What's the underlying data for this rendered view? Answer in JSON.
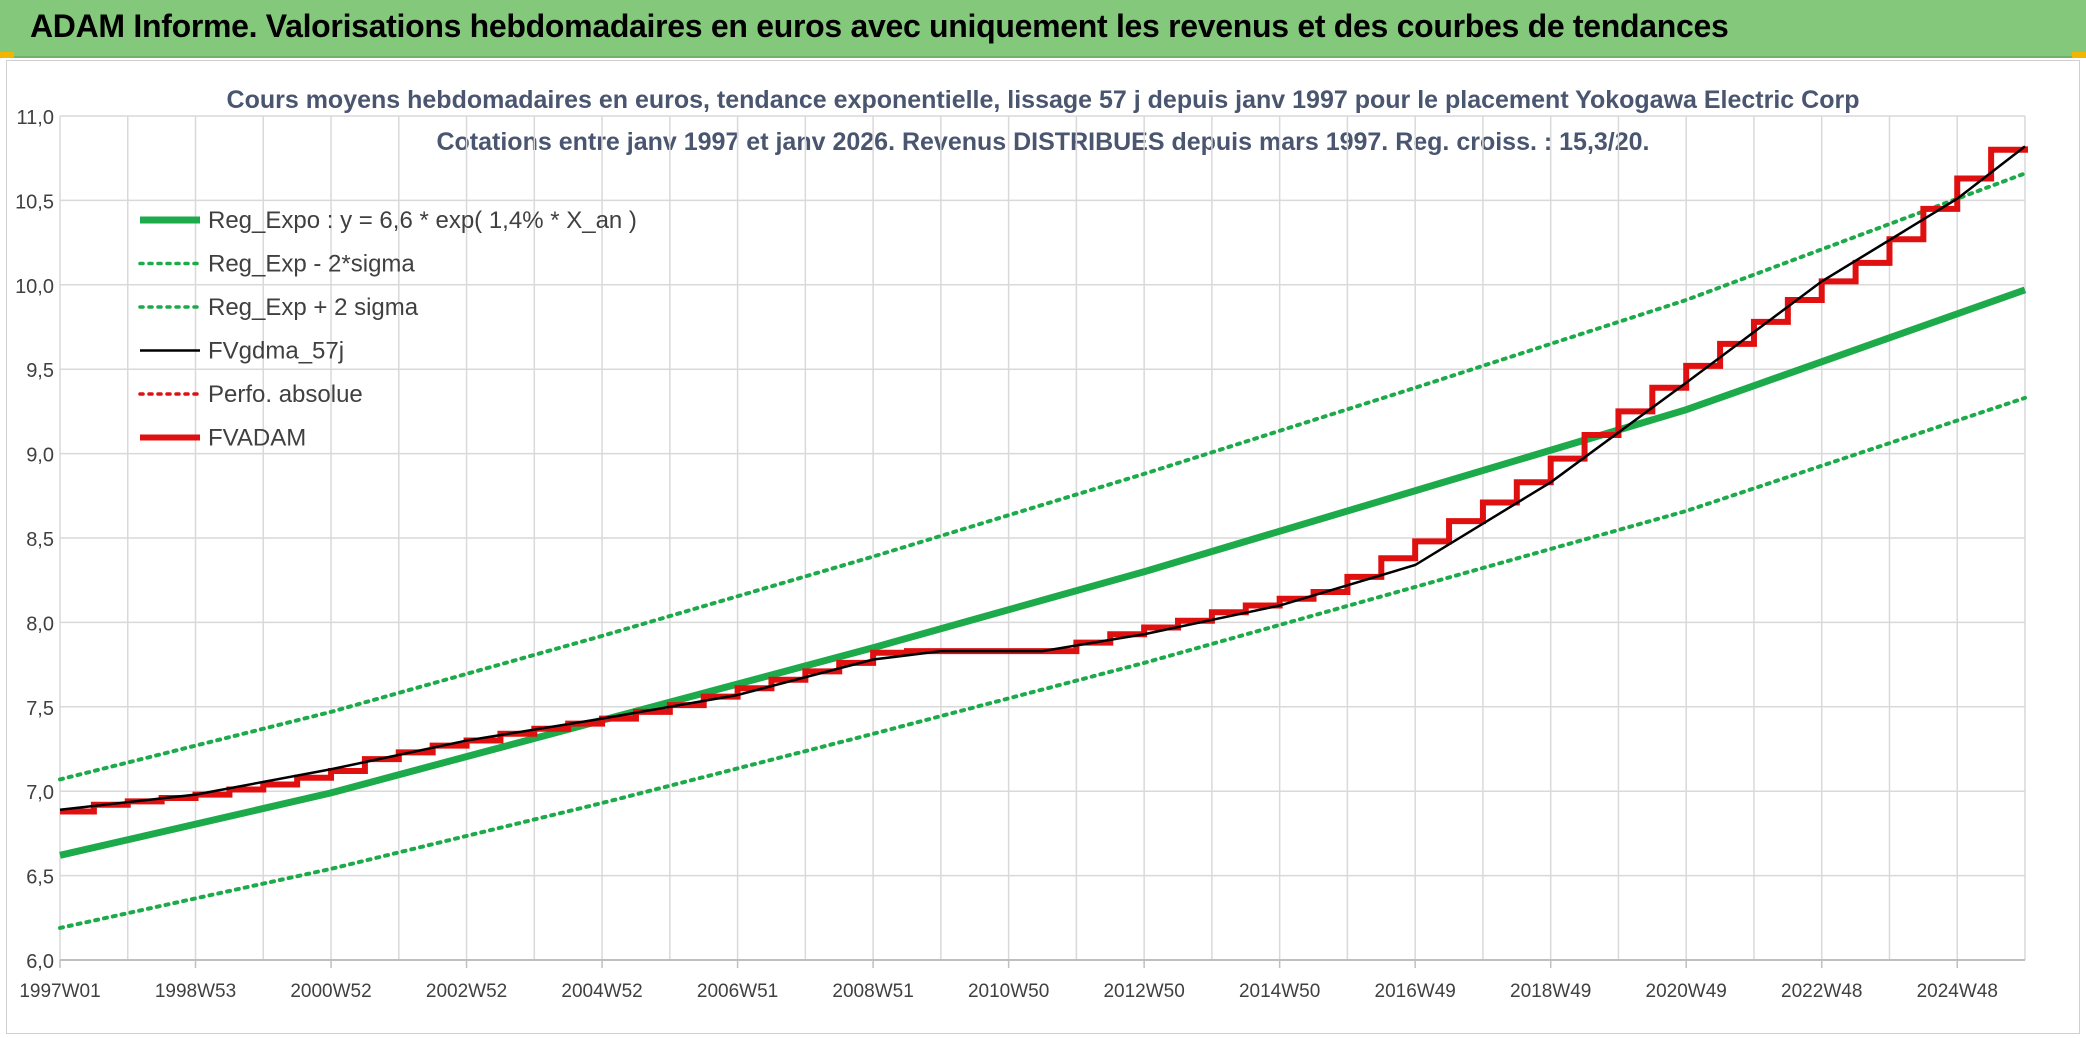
{
  "header": {
    "title": "ADAM Informe. Valorisations hebdomadaires en euros avec uniquement les revenus et des courbes de tendances"
  },
  "colors": {
    "header_bg": "#84c97b",
    "accent_corner": "#f2b600",
    "reg_expo": "#1daa4a",
    "fvadam": "#e01010",
    "fvgdma": "#000000",
    "title_text": "#4a5570",
    "grid": "#d9d9d9"
  },
  "chart_data": {
    "type": "line",
    "title": "Cours moyens hebdomadaires en euros, tendance exponentielle, lissage 57 j depuis janv 1997 pour le placement Yokogawa Electric Corp",
    "subtitle": "Cotations entre janv 1997 et janv 2026. Revenus DISTRIBUES depuis mars 1997. Reg. croiss. : 15,3/20.",
    "xlabel": "",
    "ylabel": "",
    "xlim": [
      1997.0,
      2026.0
    ],
    "ylim": [
      6.0,
      11.0
    ],
    "ytick_step": 0.5,
    "ytick_labels": [
      "6,0",
      "6,5",
      "7,0",
      "7,5",
      "8,0",
      "8,5",
      "9,0",
      "9,5",
      "10,0",
      "10,5",
      "11,0"
    ],
    "xtick_labels": [
      {
        "label": "1997W01",
        "x": 1997.0
      },
      {
        "label": "1998W53",
        "x": 1999.0
      },
      {
        "label": "2000W52",
        "x": 2001.0
      },
      {
        "label": "2002W52",
        "x": 2003.0
      },
      {
        "label": "2004W52",
        "x": 2005.0
      },
      {
        "label": "2006W51",
        "x": 2007.0
      },
      {
        "label": "2008W51",
        "x": 2009.0
      },
      {
        "label": "2010W50",
        "x": 2011.0
      },
      {
        "label": "2012W50",
        "x": 2013.0
      },
      {
        "label": "2014W50",
        "x": 2015.0
      },
      {
        "label": "2016W49",
        "x": 2017.0
      },
      {
        "label": "2018W49",
        "x": 2019.0
      },
      {
        "label": "2020W49",
        "x": 2021.0
      },
      {
        "label": "2022W48",
        "x": 2023.0
      },
      {
        "label": "2024W48",
        "x": 2025.0
      }
    ],
    "grid": true,
    "legend_position": "top-left",
    "series": [
      {
        "name": "Reg_Expo : y = 6,6 * exp( 1,4% *  X_an )",
        "style": "solid-thick",
        "color": "#1daa4a",
        "x": [
          1997.0,
          2001.0,
          2005.0,
          2009.0,
          2013.0,
          2017.0,
          2021.0,
          2026.0
        ],
        "values": [
          6.62,
          6.99,
          7.42,
          7.85,
          8.3,
          8.78,
          9.26,
          9.97
        ]
      },
      {
        "name": "Reg_Exp - 2*sigma",
        "style": "dotted",
        "color": "#1daa4a",
        "x": [
          1997.0,
          2001.0,
          2005.0,
          2009.0,
          2013.0,
          2017.0,
          2021.0,
          2026.0
        ],
        "values": [
          6.19,
          6.54,
          6.93,
          7.34,
          7.76,
          8.21,
          8.66,
          9.33
        ]
      },
      {
        "name": "Reg_Exp + 2 sigma",
        "style": "dotted",
        "color": "#1daa4a",
        "x": [
          1997.0,
          2001.0,
          2005.0,
          2009.0,
          2013.0,
          2017.0,
          2021.0,
          2026.0
        ],
        "values": [
          7.07,
          7.47,
          7.92,
          8.39,
          8.88,
          9.39,
          9.91,
          10.66
        ]
      },
      {
        "name": "FVgdma_57j",
        "style": "solid",
        "color": "#000000",
        "x": [
          1997.0,
          1999.0,
          2001.0,
          2003.0,
          2005.0,
          2007.0,
          2009.0,
          2010.0,
          2011.5,
          2013.0,
          2015.0,
          2017.0,
          2019.0,
          2021.0,
          2023.0,
          2025.0,
          2026.0
        ],
        "values": [
          6.89,
          6.98,
          7.13,
          7.3,
          7.43,
          7.57,
          7.78,
          7.83,
          7.83,
          7.93,
          8.1,
          8.34,
          8.83,
          9.42,
          10.02,
          10.51,
          10.82
        ]
      },
      {
        "name": "Perfo. absolue",
        "style": "dotted",
        "color": "#e01010",
        "x": [],
        "values": []
      },
      {
        "name": "FVADAM",
        "style": "step-thick",
        "color": "#e01010",
        "x": [
          1997.0,
          1997.5,
          1998.0,
          1998.5,
          1999.0,
          1999.5,
          2000.0,
          2000.5,
          2001.0,
          2001.5,
          2002.0,
          2002.5,
          2003.0,
          2003.5,
          2004.0,
          2004.5,
          2005.0,
          2005.5,
          2006.0,
          2006.5,
          2007.0,
          2007.5,
          2008.0,
          2008.5,
          2009.0,
          2009.5,
          2010.0,
          2010.5,
          2011.0,
          2011.5,
          2012.0,
          2012.5,
          2013.0,
          2013.5,
          2014.0,
          2014.5,
          2015.0,
          2015.5,
          2016.0,
          2016.5,
          2017.0,
          2017.5,
          2018.0,
          2018.5,
          2019.0,
          2019.5,
          2020.0,
          2020.5,
          2021.0,
          2021.5,
          2022.0,
          2022.5,
          2023.0,
          2023.5,
          2024.0,
          2024.5,
          2025.0,
          2025.5,
          2026.0
        ],
        "values": [
          6.88,
          6.92,
          6.94,
          6.96,
          6.98,
          7.01,
          7.04,
          7.08,
          7.12,
          7.19,
          7.23,
          7.27,
          7.3,
          7.34,
          7.37,
          7.4,
          7.43,
          7.47,
          7.51,
          7.56,
          7.61,
          7.66,
          7.71,
          7.76,
          7.82,
          7.83,
          7.83,
          7.83,
          7.83,
          7.83,
          7.88,
          7.93,
          7.97,
          8.01,
          8.06,
          8.1,
          8.14,
          8.18,
          8.27,
          8.38,
          8.48,
          8.6,
          8.71,
          8.83,
          8.97,
          9.11,
          9.25,
          9.39,
          9.52,
          9.65,
          9.78,
          9.91,
          10.02,
          10.13,
          10.27,
          10.45,
          10.63,
          10.8,
          10.82
        ]
      }
    ]
  }
}
